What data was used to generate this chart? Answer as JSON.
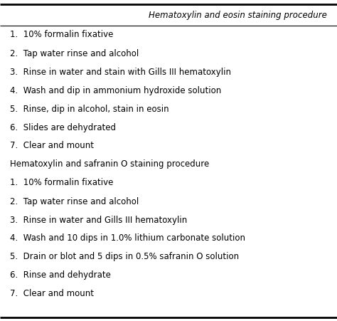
{
  "column_header": "Hematoxylin and eosin staining procedure",
  "section1_items": [
    "1.  10% formalin fixative",
    "2.  Tap water rinse and alcohol",
    "3.  Rinse in water and stain with Gills III hematoxylin",
    "4.  Wash and dip in ammonium hydroxide solution",
    "5.  Rinse, dip in alcohol, stain in eosin",
    "6.  Slides are dehydrated",
    "7.  Clear and mount"
  ],
  "section2_header": "Hematoxylin and safranin O staining procedure",
  "section2_items": [
    "1.  10% formalin fixative",
    "2.  Tap water rinse and alcohol",
    "3.  Rinse in water and Gills III hematoxylin",
    "4.  Wash and 10 dips in 1.0% lithium carbonate solution",
    "5.  Drain or blot and 5 dips in 0.5% safranin O solution",
    "6.  Rinse and dehydrate",
    "7.  Clear and mount"
  ],
  "background_color": "#ffffff",
  "text_color": "#000000",
  "header_fontsize": 8.5,
  "item_fontsize": 8.5
}
